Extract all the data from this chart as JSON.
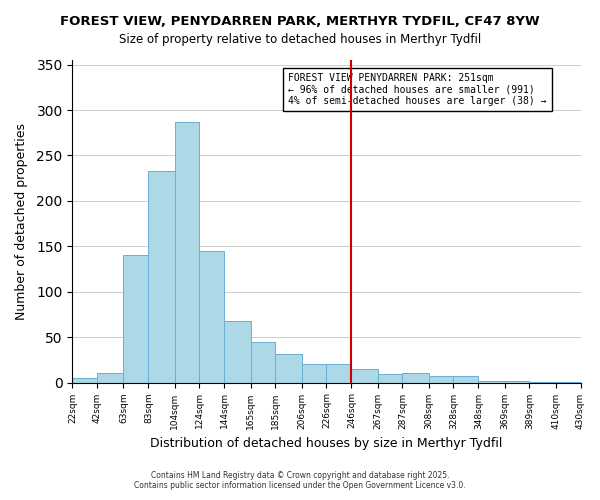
{
  "title": "FOREST VIEW, PENYDARREN PARK, MERTHYR TYDFIL, CF47 8YW",
  "subtitle": "Size of property relative to detached houses in Merthyr Tydfil",
  "xlabel": "Distribution of detached houses by size in Merthyr Tydfil",
  "ylabel": "Number of detached properties",
  "bar_edges": [
    22,
    42,
    63,
    83,
    104,
    124,
    144,
    165,
    185,
    206,
    226,
    246,
    267,
    287,
    308,
    328,
    348,
    369,
    389,
    410,
    430
  ],
  "bar_heights": [
    5,
    11,
    140,
    233,
    287,
    145,
    68,
    45,
    31,
    20,
    20,
    15,
    9,
    11,
    7,
    7,
    2,
    2,
    1,
    1
  ],
  "bar_color": "#add8e6",
  "bar_edgecolor": "#6baed6",
  "vline_x": 246,
  "vline_color": "#cc0000",
  "ylim": [
    0,
    355
  ],
  "yticks": [
    0,
    50,
    100,
    150,
    200,
    250,
    300,
    350
  ],
  "annotation_title": "FOREST VIEW PENYDARREN PARK: 251sqm",
  "annotation_line1": "← 96% of detached houses are smaller (991)",
  "annotation_line2": "4% of semi-detached houses are larger (38) →",
  "footer1": "Contains HM Land Registry data © Crown copyright and database right 2025.",
  "footer2": "Contains public sector information licensed under the Open Government Licence v3.0.",
  "background_color": "#ffffff",
  "grid_color": "#cccccc",
  "tick_labels": [
    "22sqm",
    "42sqm",
    "63sqm",
    "83sqm",
    "104sqm",
    "124sqm",
    "144sqm",
    "165sqm",
    "185sqm",
    "206sqm",
    "226sqm",
    "246sqm",
    "267sqm",
    "287sqm",
    "308sqm",
    "328sqm",
    "348sqm",
    "369sqm",
    "389sqm",
    "410sqm",
    "430sqm"
  ]
}
